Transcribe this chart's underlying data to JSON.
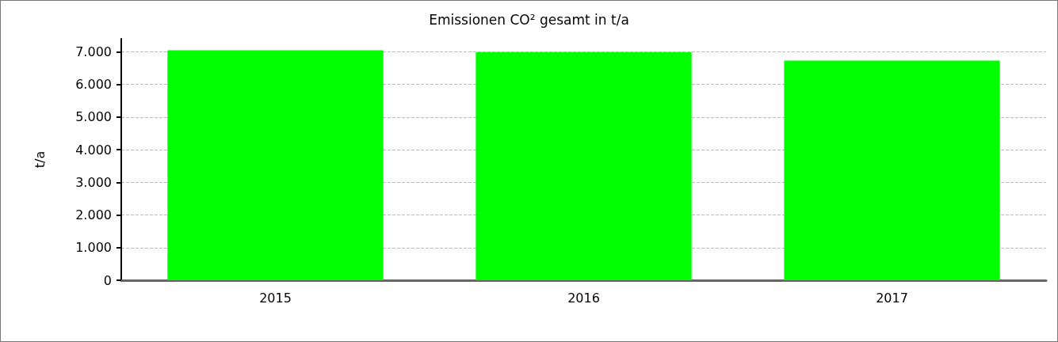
{
  "chart_data": {
    "type": "bar",
    "title": "Emissionen CO² gesamt in t/a",
    "ylabel": "t/a",
    "categories": [
      "2015",
      "2016",
      "2017"
    ],
    "series": [
      {
        "color": "#00ff00",
        "values": [
          7050,
          6990,
          6730
        ]
      }
    ],
    "ylim": [
      0,
      7400
    ],
    "yticks": [
      0,
      {
        "value": 1000,
        "label": "1.000"
      },
      {
        "value": 2000,
        "label": "2.000"
      },
      {
        "value": 3000,
        "label": "3.000"
      },
      {
        "value": 4000,
        "label": "4.000"
      },
      {
        "value": 5000,
        "label": "5.000"
      },
      {
        "value": 6000,
        "label": "6.000"
      },
      {
        "value": 7000,
        "label": "7.000"
      }
    ],
    "grid": "y"
  }
}
